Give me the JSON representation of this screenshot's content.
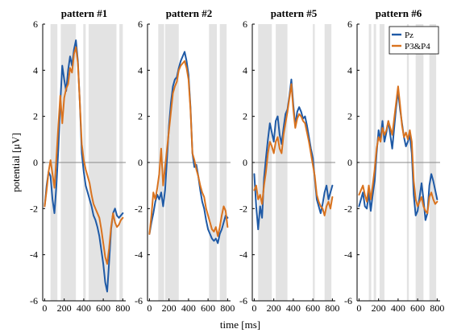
{
  "chart_data": {
    "type": "line",
    "ylabel": "potential [μV]",
    "xlabel": "time [ms]",
    "xlim": [
      -20,
      830
    ],
    "ylim": [
      -6,
      6
    ],
    "xticks": [
      0,
      200,
      400,
      600,
      800
    ],
    "xtick_labels": [
      "0",
      "200",
      "400",
      "600",
      "800"
    ],
    "yticks": [
      6,
      4,
      2,
      0,
      -2,
      -4,
      -6
    ],
    "ytick_labels": [
      "6",
      "4",
      "2",
      "0",
      "-2",
      "-4",
      "-6"
    ],
    "zero_line": true,
    "legend": {
      "placement": "top-right",
      "panel": 3,
      "entries": [
        "Pz",
        "P3&P4"
      ]
    },
    "colors": {
      "Pz": "#1f5aa6",
      "P3&P4": "#d9731f",
      "shade": "#e3e3e3",
      "zero": "#8a8a8a",
      "axis": "#000000"
    },
    "panels": [
      {
        "title": "pattern #1",
        "shaded_ms": [
          [
            60,
            130
          ],
          [
            165,
            320
          ],
          [
            395,
            420
          ],
          [
            450,
            735
          ],
          [
            765,
            800
          ]
        ],
        "series": [
          {
            "name": "Pz",
            "x": [
              0,
              20,
              40,
              60,
              80,
              100,
              120,
              140,
              160,
              180,
              200,
              220,
              240,
              260,
              280,
              300,
              320,
              340,
              360,
              380,
              400,
              420,
              440,
              460,
              480,
              500,
              520,
              540,
              560,
              580,
              600,
              620,
              640,
              660,
              680,
              700,
              720,
              740,
              760,
              780,
              800
            ],
            "y": [
              -1.9,
              -1.0,
              -0.4,
              -0.6,
              -1.6,
              -2.2,
              -1.0,
              0.6,
              2.6,
              4.2,
              3.6,
              3.1,
              4.0,
              4.6,
              4.2,
              4.9,
              5.3,
              4.4,
              2.6,
              0.4,
              -0.4,
              -1.0,
              -1.3,
              -1.6,
              -1.9,
              -2.3,
              -2.5,
              -2.8,
              -3.2,
              -3.8,
              -4.4,
              -5.2,
              -5.6,
              -4.3,
              -2.9,
              -2.2,
              -2.0,
              -2.3,
              -2.4,
              -2.3,
              -2.2
            ]
          },
          {
            "name": "P3&P4",
            "x": [
              0,
              20,
              40,
              60,
              80,
              100,
              120,
              140,
              160,
              180,
              200,
              220,
              240,
              260,
              280,
              300,
              320,
              340,
              360,
              380,
              400,
              420,
              440,
              460,
              480,
              500,
              520,
              540,
              560,
              580,
              600,
              620,
              640,
              660,
              680,
              700,
              720,
              740,
              760,
              780,
              800
            ],
            "y": [
              -1.9,
              -1.2,
              -0.4,
              0.1,
              -0.5,
              -1.1,
              0.2,
              1.6,
              2.9,
              1.7,
              2.8,
              3.2,
              3.4,
              4.1,
              3.9,
              4.7,
              5.0,
              4.3,
              2.6,
              0.8,
              0.1,
              -0.3,
              -0.6,
              -0.9,
              -1.4,
              -1.8,
              -2.0,
              -2.2,
              -2.4,
              -2.9,
              -3.5,
              -4.1,
              -4.4,
              -3.7,
              -2.8,
              -2.2,
              -2.6,
              -2.8,
              -2.7,
              -2.5,
              -2.4
            ]
          }
        ]
      },
      {
        "title": "pattern #2",
        "shaded_ms": [
          [
            90,
            150
          ],
          [
            160,
            300
          ],
          [
            610,
            690
          ],
          [
            720,
            790
          ]
        ],
        "series": [
          {
            "name": "Pz",
            "x": [
              0,
              20,
              40,
              60,
              80,
              100,
              120,
              140,
              160,
              180,
              200,
              220,
              240,
              260,
              280,
              300,
              320,
              340,
              360,
              380,
              400,
              420,
              440,
              460,
              480,
              500,
              520,
              540,
              560,
              580,
              600,
              620,
              640,
              660,
              680,
              700,
              720,
              740,
              760,
              780,
              800
            ],
            "y": [
              -3.1,
              -2.6,
              -2.2,
              -1.7,
              -1.4,
              -1.6,
              -1.3,
              -1.9,
              -1.2,
              0.2,
              1.6,
              2.6,
              3.3,
              3.6,
              3.7,
              4.1,
              4.4,
              4.6,
              4.8,
              4.4,
              3.8,
              2.4,
              0.4,
              -0.2,
              -0.1,
              -0.6,
              -1.2,
              -1.7,
              -2.0,
              -2.5,
              -2.9,
              -3.1,
              -3.3,
              -3.4,
              -3.3,
              -3.5,
              -3.1,
              -2.9,
              -2.6,
              -2.3,
              -2.4
            ]
          },
          {
            "name": "P3&P4",
            "x": [
              0,
              20,
              40,
              60,
              80,
              100,
              120,
              140,
              160,
              180,
              200,
              220,
              240,
              260,
              280,
              300,
              320,
              340,
              360,
              380,
              400,
              420,
              440,
              460,
              480,
              500,
              520,
              540,
              560,
              580,
              600,
              620,
              640,
              660,
              680,
              700,
              720,
              740,
              760,
              780,
              800
            ],
            "y": [
              -3.1,
              -2.3,
              -1.3,
              -1.6,
              -1.1,
              -0.5,
              0.6,
              -1.0,
              -0.2,
              0.6,
              1.4,
              2.2,
              3.0,
              3.3,
              3.5,
              4.0,
              4.2,
              4.3,
              4.4,
              4.1,
              3.6,
              2.3,
              0.4,
              0.1,
              -0.3,
              -0.6,
              -1.0,
              -1.3,
              -1.5,
              -2.0,
              -2.3,
              -2.6,
              -2.9,
              -3.0,
              -2.8,
              -3.2,
              -2.8,
              -2.3,
              -1.9,
              -2.1,
              -2.8
            ]
          }
        ]
      },
      {
        "title": "pattern #5",
        "shaded_ms": [
          [
            40,
            180
          ],
          [
            220,
            340
          ],
          [
            600,
            620
          ],
          [
            720,
            790
          ]
        ],
        "series": [
          {
            "name": "Pz",
            "x": [
              0,
              20,
              40,
              60,
              80,
              100,
              120,
              140,
              160,
              180,
              200,
              220,
              240,
              260,
              280,
              300,
              320,
              340,
              360,
              380,
              400,
              420,
              440,
              460,
              480,
              500,
              520,
              540,
              560,
              580,
              600,
              620,
              640,
              660,
              680,
              700,
              720,
              740,
              760,
              780,
              800
            ],
            "y": [
              -0.5,
              -1.9,
              -2.9,
              -1.9,
              -2.4,
              -0.7,
              0.2,
              1.0,
              1.7,
              1.3,
              0.9,
              1.8,
              2.0,
              1.2,
              0.8,
              1.5,
              2.1,
              2.3,
              2.9,
              3.6,
              2.5,
              1.6,
              2.2,
              2.4,
              2.2,
              1.9,
              2.0,
              1.6,
              1.1,
              0.6,
              0.2,
              -0.7,
              -1.6,
              -1.9,
              -2.2,
              -1.8,
              -1.3,
              -1.0,
              -1.6,
              -1.3,
              -1.0
            ]
          },
          {
            "name": "P3&P4",
            "x": [
              0,
              20,
              40,
              60,
              80,
              100,
              120,
              140,
              160,
              180,
              200,
              220,
              240,
              260,
              280,
              300,
              320,
              340,
              360,
              380,
              400,
              420,
              440,
              460,
              480,
              500,
              520,
              540,
              560,
              580,
              600,
              620,
              640,
              660,
              680,
              700,
              720,
              740,
              760,
              780,
              800
            ],
            "y": [
              -1.2,
              -1.0,
              -1.6,
              -1.4,
              -1.8,
              -1.0,
              -0.4,
              0.4,
              0.9,
              0.7,
              0.4,
              0.9,
              1.1,
              0.6,
              0.4,
              1.2,
              1.7,
              2.2,
              2.8,
              3.4,
              2.3,
              1.5,
              1.9,
              2.1,
              2.0,
              1.8,
              1.7,
              1.3,
              0.9,
              0.4,
              -0.1,
              -0.6,
              -1.4,
              -1.7,
              -1.9,
              -2.0,
              -2.3,
              -1.9,
              -1.7,
              -2.0,
              -1.5
            ]
          }
        ]
      },
      {
        "title": "pattern #6",
        "shaded_ms": [
          [
            100,
            125
          ],
          [
            150,
            175
          ],
          [
            210,
            260
          ],
          [
            490,
            510
          ],
          [
            580,
            660
          ],
          [
            720,
            790
          ]
        ],
        "series": [
          {
            "name": "Pz",
            "x": [
              0,
              20,
              40,
              60,
              80,
              100,
              120,
              140,
              160,
              180,
              200,
              220,
              240,
              260,
              280,
              300,
              320,
              340,
              360,
              380,
              400,
              420,
              440,
              460,
              480,
              500,
              520,
              540,
              560,
              580,
              600,
              620,
              640,
              660,
              680,
              700,
              720,
              740,
              760,
              780,
              800
            ],
            "y": [
              -1.9,
              -1.6,
              -1.3,
              -1.9,
              -2.0,
              -1.3,
              -2.1,
              -1.4,
              -0.8,
              0.4,
              1.4,
              1.0,
              1.8,
              0.9,
              1.3,
              1.8,
              1.2,
              0.6,
              1.5,
              2.4,
              3.1,
              2.3,
              1.7,
              1.1,
              0.7,
              0.9,
              1.2,
              0.4,
              -1.4,
              -2.3,
              -2.1,
              -1.5,
              -0.9,
              -1.6,
              -2.5,
              -2.2,
              -1.0,
              -0.5,
              -0.8,
              -1.2,
              -1.6
            ]
          },
          {
            "name": "P3&P4",
            "x": [
              0,
              20,
              40,
              60,
              80,
              100,
              120,
              140,
              160,
              180,
              200,
              220,
              240,
              260,
              280,
              300,
              320,
              340,
              360,
              380,
              400,
              420,
              440,
              460,
              480,
              500,
              520,
              540,
              560,
              580,
              600,
              620,
              640,
              660,
              680,
              700,
              720,
              740,
              760,
              780,
              800
            ],
            "y": [
              -1.4,
              -1.2,
              -1.0,
              -1.4,
              -1.7,
              -1.0,
              -1.6,
              -1.0,
              -0.3,
              0.6,
              1.1,
              0.9,
              1.5,
              1.2,
              1.4,
              1.8,
              1.5,
              1.2,
              1.9,
              2.6,
              3.3,
              2.5,
              1.6,
              1.1,
              1.3,
              1.0,
              1.4,
              0.9,
              -0.8,
              -1.6,
              -1.9,
              -1.7,
              -1.5,
              -1.9,
              -2.1,
              -2.2,
              -1.5,
              -1.3,
              -1.6,
              -1.8,
              -1.7
            ]
          }
        ]
      }
    ]
  }
}
